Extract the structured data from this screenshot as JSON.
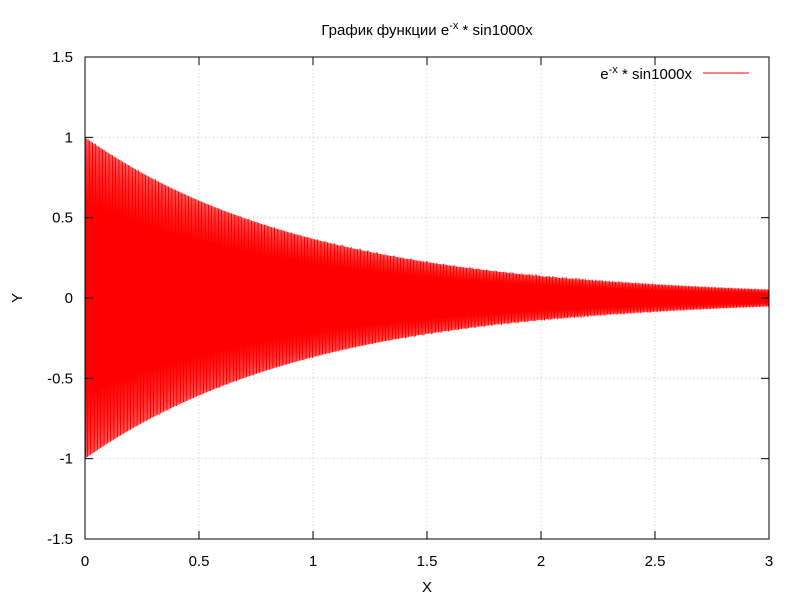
{
  "chart_data": {
    "type": "line",
    "title": {
      "prefix": "График функции e",
      "sup": "-x",
      "suffix": " * sin1000x"
    },
    "xlabel": "X",
    "ylabel": "Y",
    "xlim": [
      0,
      3
    ],
    "ylim": [
      -1.5,
      1.5
    ],
    "x_ticks": [
      0,
      0.5,
      1,
      1.5,
      2,
      2.5,
      3
    ],
    "x_tick_labels": [
      "0",
      "0.5",
      "1",
      "1.5",
      "2",
      "2.5",
      "3"
    ],
    "y_ticks": [
      -1.5,
      -1,
      -0.5,
      0,
      0.5,
      1,
      1.5
    ],
    "y_tick_labels": [
      "-1.5",
      "-1",
      "-0.5",
      "0",
      "0.5",
      "1",
      "1.5"
    ],
    "grid": true,
    "legend_position": "top-right",
    "series": [
      {
        "name": {
          "prefix": "e",
          "sup": "-x",
          "suffix": " * sin1000x"
        },
        "color": "#ff0000",
        "function": "exp(-x) * sin(1000*x)",
        "x_range": [
          0,
          3
        ]
      }
    ]
  }
}
